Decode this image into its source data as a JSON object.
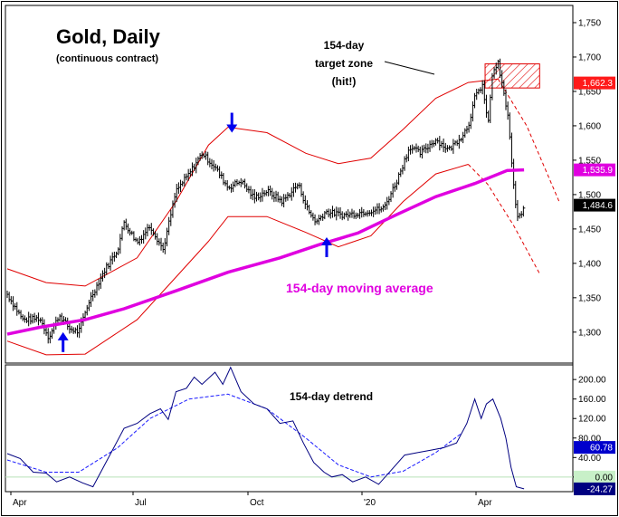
{
  "chart_data": {
    "type": "line",
    "title": "Gold, Daily",
    "subtitle": "(continuous contract)",
    "x_ticks": [
      "Apr",
      "Jul",
      "Oct",
      "'20",
      "Apr"
    ],
    "main_panel": {
      "ylim": [
        1255,
        1775
      ],
      "y_ticks": [
        1300,
        1350,
        1400,
        1450,
        1500,
        1550,
        1600,
        1650,
        1700,
        1750
      ],
      "y_tick_labels": [
        "1,300",
        "1,350",
        "1,400",
        "1,450",
        "1,500",
        "1,550",
        "1,600",
        "1,650",
        "1,700",
        "1,750"
      ],
      "price_close_keypoints": [
        {
          "t": 0,
          "v": 1355
        },
        {
          "t": 12,
          "v": 1318
        },
        {
          "t": 25,
          "v": 1320
        },
        {
          "t": 32,
          "v": 1292
        },
        {
          "t": 40,
          "v": 1325
        },
        {
          "t": 48,
          "v": 1305
        },
        {
          "t": 55,
          "v": 1300
        },
        {
          "t": 63,
          "v": 1345
        },
        {
          "t": 75,
          "v": 1390
        },
        {
          "t": 85,
          "v": 1420
        },
        {
          "t": 90,
          "v": 1460
        },
        {
          "t": 100,
          "v": 1430
        },
        {
          "t": 110,
          "v": 1455
        },
        {
          "t": 120,
          "v": 1420
        },
        {
          "t": 130,
          "v": 1505
        },
        {
          "t": 140,
          "v": 1530
        },
        {
          "t": 150,
          "v": 1560
        },
        {
          "t": 160,
          "v": 1540
        },
        {
          "t": 170,
          "v": 1510
        },
        {
          "t": 180,
          "v": 1520
        },
        {
          "t": 190,
          "v": 1495
        },
        {
          "t": 200,
          "v": 1505
        },
        {
          "t": 212,
          "v": 1490
        },
        {
          "t": 224,
          "v": 1515
        },
        {
          "t": 232,
          "v": 1475
        },
        {
          "t": 238,
          "v": 1460
        },
        {
          "t": 245,
          "v": 1475
        },
        {
          "t": 260,
          "v": 1470
        },
        {
          "t": 275,
          "v": 1475
        },
        {
          "t": 290,
          "v": 1480
        },
        {
          "t": 300,
          "v": 1520
        },
        {
          "t": 310,
          "v": 1570
        },
        {
          "t": 318,
          "v": 1560
        },
        {
          "t": 330,
          "v": 1580
        },
        {
          "t": 340,
          "v": 1565
        },
        {
          "t": 350,
          "v": 1585
        },
        {
          "t": 355,
          "v": 1600
        },
        {
          "t": 360,
          "v": 1640
        },
        {
          "t": 366,
          "v": 1660
        },
        {
          "t": 370,
          "v": 1600
        },
        {
          "t": 374,
          "v": 1680
        },
        {
          "t": 378,
          "v": 1690
        },
        {
          "t": 382,
          "v": 1650
        },
        {
          "t": 386,
          "v": 1610
        },
        {
          "t": 389,
          "v": 1530
        },
        {
          "t": 392,
          "v": 1475
        },
        {
          "t": 395,
          "v": 1465
        },
        {
          "t": 398,
          "v": 1484.6
        }
      ],
      "moving_average_154": [
        {
          "t": 0,
          "v": 1297
        },
        {
          "t": 25,
          "v": 1307
        },
        {
          "t": 60,
          "v": 1318
        },
        {
          "t": 90,
          "v": 1334
        },
        {
          "t": 130,
          "v": 1360
        },
        {
          "t": 170,
          "v": 1387
        },
        {
          "t": 210,
          "v": 1408
        },
        {
          "t": 240,
          "v": 1427
        },
        {
          "t": 270,
          "v": 1444
        },
        {
          "t": 300,
          "v": 1471
        },
        {
          "t": 330,
          "v": 1497
        },
        {
          "t": 360,
          "v": 1516
        },
        {
          "t": 385,
          "v": 1535
        },
        {
          "t": 398,
          "v": 1535.9
        }
      ],
      "upper_band": [
        {
          "t": 0,
          "v": 1392
        },
        {
          "t": 30,
          "v": 1372
        },
        {
          "t": 60,
          "v": 1367
        },
        {
          "t": 100,
          "v": 1408
        },
        {
          "t": 130,
          "v": 1490
        },
        {
          "t": 155,
          "v": 1572
        },
        {
          "t": 170,
          "v": 1598
        },
        {
          "t": 200,
          "v": 1590
        },
        {
          "t": 230,
          "v": 1560
        },
        {
          "t": 255,
          "v": 1545
        },
        {
          "t": 280,
          "v": 1553
        },
        {
          "t": 305,
          "v": 1595
        },
        {
          "t": 330,
          "v": 1640
        },
        {
          "t": 355,
          "v": 1663
        },
        {
          "t": 378,
          "v": 1668
        }
      ],
      "upper_band_projection": [
        {
          "t": 378,
          "v": 1668
        },
        {
          "t": 400,
          "v": 1600
        },
        {
          "t": 425,
          "v": 1490
        }
      ],
      "lower_band": [
        {
          "t": 0,
          "v": 1287
        },
        {
          "t": 30,
          "v": 1267
        },
        {
          "t": 60,
          "v": 1268
        },
        {
          "t": 100,
          "v": 1318
        },
        {
          "t": 130,
          "v": 1380
        },
        {
          "t": 155,
          "v": 1432
        },
        {
          "t": 170,
          "v": 1468
        },
        {
          "t": 200,
          "v": 1468
        },
        {
          "t": 230,
          "v": 1445
        },
        {
          "t": 255,
          "v": 1424
        },
        {
          "t": 280,
          "v": 1440
        },
        {
          "t": 305,
          "v": 1490
        },
        {
          "t": 330,
          "v": 1530
        },
        {
          "t": 355,
          "v": 1544
        }
      ],
      "lower_band_projection": [
        {
          "t": 355,
          "v": 1544
        },
        {
          "t": 370,
          "v": 1515
        },
        {
          "t": 390,
          "v": 1455
        },
        {
          "t": 410,
          "v": 1385
        }
      ],
      "target_zone": {
        "t_start": 368,
        "t_end": 410,
        "v_low": 1655,
        "v_high": 1690
      },
      "arrows": [
        {
          "t": 43,
          "v": 1300,
          "dir": "up"
        },
        {
          "t": 173,
          "v": 1590,
          "dir": "down"
        },
        {
          "t": 246,
          "v": 1438,
          "dir": "up"
        }
      ],
      "last_value_badges": [
        {
          "label": "1,662.3",
          "value": 1662.3,
          "bg": "#ff1a1a",
          "fg": "#ffffff"
        },
        {
          "label": "1,535.9",
          "value": 1535.9,
          "bg": "#e000e0",
          "fg": "#ffffff"
        },
        {
          "label": "1,484.6",
          "value": 1484.6,
          "bg": "#000000",
          "fg": "#ffffff"
        }
      ]
    },
    "detrend_panel": {
      "ylim": [
        -30,
        230
      ],
      "y_ticks": [
        0,
        40,
        80,
        120,
        160,
        200
      ],
      "y_tick_labels": [
        "0.00",
        "40.00",
        "80.00",
        "120.00",
        "160.00",
        "200.00"
      ],
      "detrend": [
        {
          "t": 0,
          "v": 48
        },
        {
          "t": 10,
          "v": 38
        },
        {
          "t": 20,
          "v": 10
        },
        {
          "t": 30,
          "v": 8
        },
        {
          "t": 38,
          "v": -10
        },
        {
          "t": 48,
          "v": 0
        },
        {
          "t": 58,
          "v": -12
        },
        {
          "t": 66,
          "v": -20
        },
        {
          "t": 74,
          "v": 20
        },
        {
          "t": 82,
          "v": 60
        },
        {
          "t": 90,
          "v": 100
        },
        {
          "t": 100,
          "v": 110
        },
        {
          "t": 110,
          "v": 130
        },
        {
          "t": 118,
          "v": 140
        },
        {
          "t": 124,
          "v": 118
        },
        {
          "t": 130,
          "v": 175
        },
        {
          "t": 138,
          "v": 182
        },
        {
          "t": 144,
          "v": 205
        },
        {
          "t": 150,
          "v": 190
        },
        {
          "t": 160,
          "v": 215
        },
        {
          "t": 166,
          "v": 190
        },
        {
          "t": 172,
          "v": 225
        },
        {
          "t": 180,
          "v": 175
        },
        {
          "t": 190,
          "v": 150
        },
        {
          "t": 200,
          "v": 140
        },
        {
          "t": 210,
          "v": 110
        },
        {
          "t": 220,
          "v": 115
        },
        {
          "t": 228,
          "v": 70
        },
        {
          "t": 236,
          "v": 30
        },
        {
          "t": 244,
          "v": 10
        },
        {
          "t": 250,
          "v": 0
        },
        {
          "t": 258,
          "v": 5
        },
        {
          "t": 266,
          "v": -10
        },
        {
          "t": 276,
          "v": 0
        },
        {
          "t": 286,
          "v": -15
        },
        {
          "t": 296,
          "v": 15
        },
        {
          "t": 306,
          "v": 45
        },
        {
          "t": 316,
          "v": 50
        },
        {
          "t": 326,
          "v": 55
        },
        {
          "t": 336,
          "v": 60
        },
        {
          "t": 346,
          "v": 70
        },
        {
          "t": 354,
          "v": 110
        },
        {
          "t": 360,
          "v": 160
        },
        {
          "t": 365,
          "v": 120
        },
        {
          "t": 369,
          "v": 150
        },
        {
          "t": 374,
          "v": 160
        },
        {
          "t": 380,
          "v": 120
        },
        {
          "t": 384,
          "v": 80
        },
        {
          "t": 388,
          "v": 20
        },
        {
          "t": 392,
          "v": -20
        },
        {
          "t": 398,
          "v": -24.27
        }
      ],
      "cycle_model": [
        {
          "t": 0,
          "v": 35
        },
        {
          "t": 30,
          "v": 10
        },
        {
          "t": 55,
          "v": 10
        },
        {
          "t": 85,
          "v": 60
        },
        {
          "t": 110,
          "v": 120
        },
        {
          "t": 140,
          "v": 160
        },
        {
          "t": 170,
          "v": 170
        },
        {
          "t": 200,
          "v": 140
        },
        {
          "t": 230,
          "v": 80
        },
        {
          "t": 255,
          "v": 25
        },
        {
          "t": 280,
          "v": 0
        },
        {
          "t": 305,
          "v": 12
        },
        {
          "t": 330,
          "v": 50
        },
        {
          "t": 350,
          "v": 90
        }
      ],
      "last_value_badges": [
        {
          "label": "60.78",
          "value": 60.78,
          "bg": "#0000cc",
          "fg": "#ffffff"
        },
        {
          "label": "0.00",
          "value": 0,
          "bg": "#c8f0c8",
          "fg": "#000000"
        },
        {
          "label": "-24.27",
          "value": -24.27,
          "bg": "#000080",
          "fg": "#ffffff"
        }
      ]
    },
    "annotations": {
      "target_label_1": "154-day",
      "target_label_2": "target zone",
      "target_label_3": "(hit!)",
      "ma_label": "154-day moving average",
      "detrend_label": "154-day detrend"
    },
    "colors": {
      "price": "#000000",
      "bands": "#e00000",
      "moving_average": "#e000e0",
      "detrend": "#000080",
      "cycle_model": "#1a1aff",
      "arrows": "#0000ee",
      "target_zone": "#e00000",
      "zero_line": "#b8e0b8"
    }
  }
}
